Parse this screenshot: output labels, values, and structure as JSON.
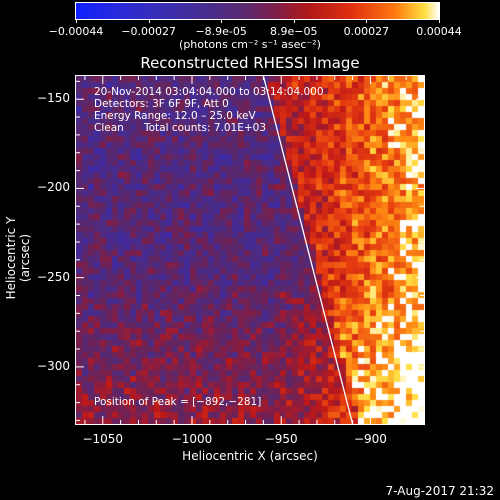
{
  "colorbar": {
    "ticks": [
      "-0.00044",
      "-0.00027",
      "-8.9e-05",
      "8.9e-05",
      "0.00027",
      "0.00044"
    ],
    "unit": "(photons cm⁻² s⁻¹ asec⁻²)",
    "range": [
      -0.00044,
      0.00044
    ]
  },
  "chart_data": {
    "type": "heatmap",
    "title": "Reconstructed RHESSI Image",
    "xlabel": "Heliocentric X (arcsec)",
    "ylabel": "Heliocentric Y (arcsec)",
    "xlim": [
      -1065,
      -870
    ],
    "ylim": [
      -332,
      -137
    ],
    "xticks": [
      "−1050",
      "−1000",
      "−950",
      "−900"
    ],
    "xtick_values": [
      -1050,
      -1000,
      -950,
      -900
    ],
    "yticks": [
      "−150",
      "−200",
      "−250",
      "−300"
    ],
    "ytick_values": [
      -150,
      -200,
      -250,
      -300
    ],
    "annotations": {
      "time": "20-Nov-2014 03:04:04.000 to 03:14:04.000",
      "detectors": "Detectors: 3F 6F 9F, Att 0",
      "energy": "Energy Range: 12.0 – 25.0 keV",
      "clean": "Clean",
      "counts": "Total counts: 7.01E+03",
      "peak": "Position of Peak = [−892,−281]"
    },
    "limb_line": [
      [
        -960,
        -137
      ],
      [
        -910,
        -332
      ]
    ],
    "peak_position": [
      -892,
      -281
    ],
    "grid": false
  },
  "footer": {
    "datestamp": "7-Aug-2017 21:32"
  }
}
